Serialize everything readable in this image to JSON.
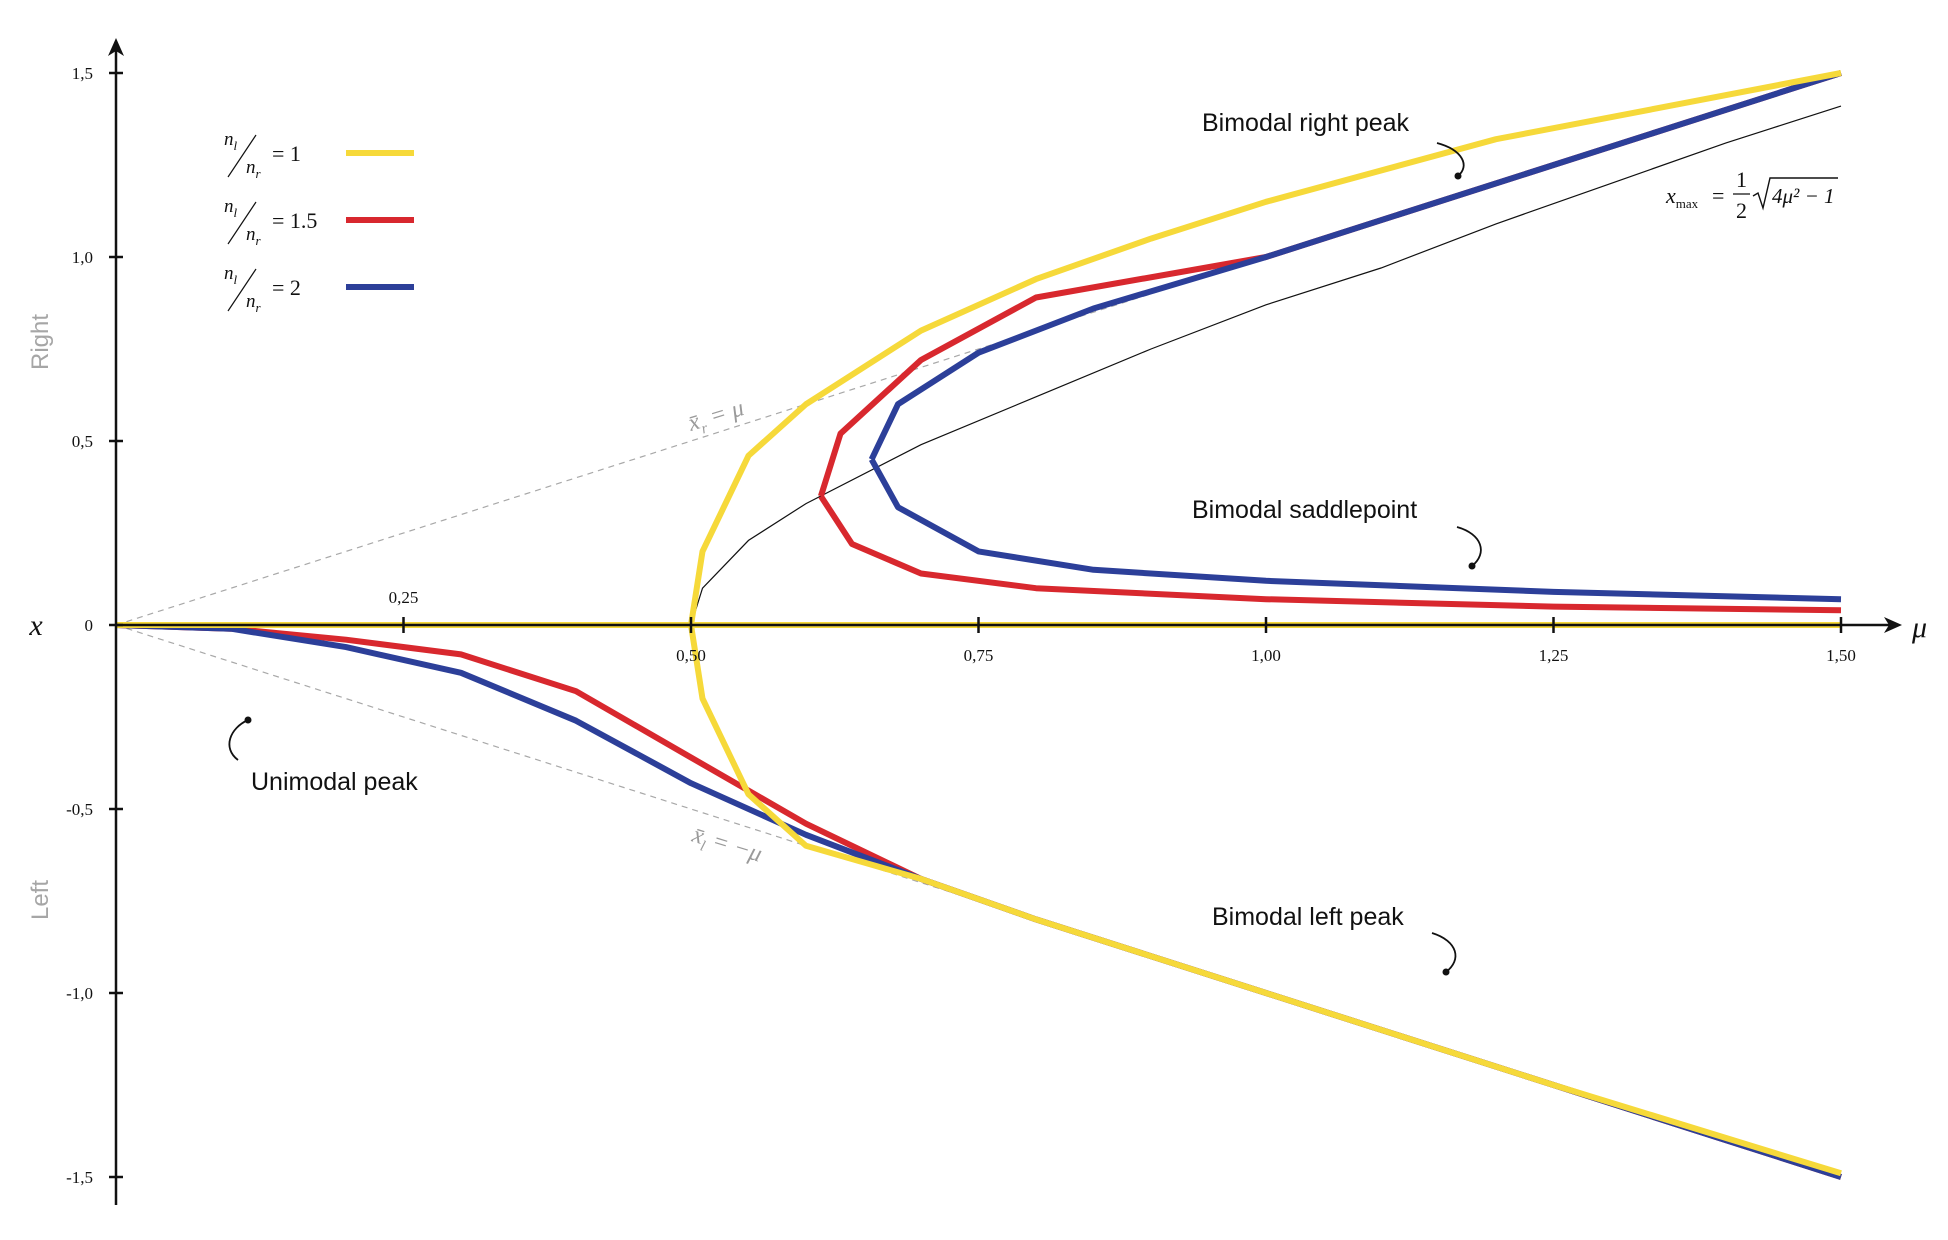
{
  "chart_data": {
    "type": "line",
    "xlabel": "μ",
    "ylabel": "x",
    "x_ticks": [
      "0,25",
      "0,50",
      "0,75",
      "1,00",
      "1,25",
      "1,50"
    ],
    "y_ticks": [
      "1,5",
      "1,0",
      "0,5",
      "0",
      "-0,5",
      "-1,0",
      "-1,5"
    ],
    "y_side_labels": {
      "top": "Right",
      "bottom": "Left"
    },
    "xlim": [
      0,
      1.5
    ],
    "ylim": [
      -1.5,
      1.5
    ],
    "grid": false,
    "legend_position": "top-left",
    "series": [
      {
        "name": "n_l/n_r = 1",
        "legend_ratio": "= 1",
        "color": "#f6d93a",
        "branches": {
          "unimodal_peak": [
            [
              0,
              0
            ],
            [
              0.25,
              0
            ],
            [
              0.5,
              0
            ],
            [
              0.75,
              0
            ],
            [
              1.0,
              0
            ],
            [
              1.25,
              0
            ],
            [
              1.5,
              0
            ]
          ],
          "right_peak": [
            [
              0.5,
              0
            ],
            [
              0.51,
              0.2
            ],
            [
              0.55,
              0.46
            ],
            [
              0.6,
              0.6
            ],
            [
              0.7,
              0.8
            ],
            [
              0.8,
              0.94
            ],
            [
              0.9,
              1.05
            ],
            [
              1.0,
              1.15
            ],
            [
              1.2,
              1.32
            ],
            [
              1.5,
              1.5
            ]
          ],
          "left_peak": [
            [
              0.5,
              0
            ],
            [
              0.51,
              -0.2
            ],
            [
              0.55,
              -0.46
            ],
            [
              0.6,
              -0.6
            ],
            [
              0.7,
              -0.69
            ],
            [
              0.8,
              -0.8
            ],
            [
              1.0,
              -1.0
            ],
            [
              1.25,
              -1.25
            ],
            [
              1.5,
              -1.49
            ]
          ]
        }
      },
      {
        "name": "n_l/n_r = 1.5",
        "legend_ratio": "= 1.5",
        "color": "#d8282e",
        "branches": {
          "left_unimodal": [
            [
              0,
              0
            ],
            [
              0.1,
              -0.01
            ],
            [
              0.2,
              -0.04
            ],
            [
              0.3,
              -0.08
            ],
            [
              0.4,
              -0.18
            ],
            [
              0.5,
              -0.36
            ],
            [
              0.6,
              -0.54
            ],
            [
              0.7,
              -0.69
            ],
            [
              0.8,
              -0.8
            ],
            [
              1.0,
              -1.0
            ],
            [
              1.25,
              -1.25
            ],
            [
              1.5,
              -1.5
            ]
          ],
          "right_peak": [
            [
              0.613,
              0.35
            ],
            [
              0.63,
              0.52
            ],
            [
              0.7,
              0.72
            ],
            [
              0.8,
              0.89
            ],
            [
              1.0,
              1.0
            ],
            [
              1.25,
              1.25
            ],
            [
              1.5,
              1.5
            ]
          ],
          "saddlepoint": [
            [
              0.613,
              0.35
            ],
            [
              0.64,
              0.22
            ],
            [
              0.7,
              0.14
            ],
            [
              0.8,
              0.1
            ],
            [
              1.0,
              0.07
            ],
            [
              1.25,
              0.05
            ],
            [
              1.5,
              0.04
            ]
          ]
        }
      },
      {
        "name": "n_l/n_r = 2",
        "legend_ratio": "= 2",
        "color": "#2c3f99",
        "branches": {
          "left_unimodal": [
            [
              0,
              0
            ],
            [
              0.1,
              -0.01
            ],
            [
              0.2,
              -0.06
            ],
            [
              0.3,
              -0.13
            ],
            [
              0.4,
              -0.26
            ],
            [
              0.5,
              -0.43
            ],
            [
              0.6,
              -0.57
            ],
            [
              0.7,
              -0.69
            ],
            [
              0.8,
              -0.8
            ],
            [
              1.0,
              -1.0
            ],
            [
              1.25,
              -1.25
            ],
            [
              1.5,
              -1.5
            ]
          ],
          "right_peak": [
            [
              0.657,
              0.45
            ],
            [
              0.68,
              0.6
            ],
            [
              0.75,
              0.74
            ],
            [
              0.85,
              0.86
            ],
            [
              1.0,
              1.0
            ],
            [
              1.25,
              1.25
            ],
            [
              1.5,
              1.5
            ]
          ],
          "saddlepoint": [
            [
              0.657,
              0.45
            ],
            [
              0.68,
              0.32
            ],
            [
              0.75,
              0.2
            ],
            [
              0.85,
              0.15
            ],
            [
              1.0,
              0.12
            ],
            [
              1.25,
              0.09
            ],
            [
              1.5,
              0.07
            ]
          ]
        }
      }
    ],
    "reference_lines": [
      {
        "label_sym": "x̄",
        "label_sub": "r",
        "label_rest": " = μ",
        "style": "dashed",
        "slope": 1
      },
      {
        "label_sym": "x̄",
        "label_sub": "l",
        "label_rest": " = −μ",
        "style": "dashed",
        "slope": -1
      }
    ],
    "x_max_curve": {
      "lhs": "x",
      "lhs_sub": "max",
      "equals": "=",
      "frac_num": "1",
      "frac_den": "2",
      "radicand": "4μ² − 1",
      "formula": "x_max = 1/2 √(4μ² − 1)",
      "points": [
        [
          0.5,
          0
        ],
        [
          0.51,
          0.1
        ],
        [
          0.55,
          0.23
        ],
        [
          0.6,
          0.33
        ],
        [
          0.7,
          0.49
        ],
        [
          0.8,
          0.62
        ],
        [
          0.9,
          0.75
        ],
        [
          1.0,
          0.87
        ],
        [
          1.1,
          0.97
        ],
        [
          1.2,
          1.09
        ],
        [
          1.3,
          1.2
        ],
        [
          1.4,
          1.31
        ],
        [
          1.5,
          1.41
        ]
      ]
    },
    "annotations": [
      "Bimodal right peak",
      "Bimodal saddlepoint",
      "Unimodal peak",
      "Bimodal left peak"
    ]
  }
}
